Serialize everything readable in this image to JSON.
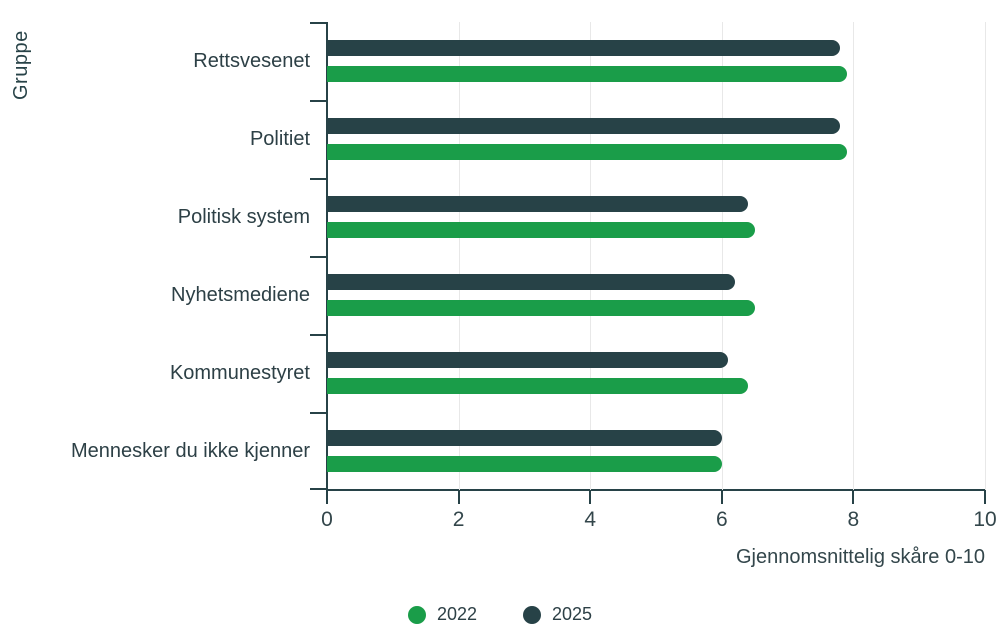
{
  "chart_data": {
    "type": "bar",
    "orientation": "horizontal",
    "title": "",
    "xlabel": "Gjennomsnittelig skåre 0-10",
    "ylabel": "Gruppe",
    "xlim": [
      0,
      10
    ],
    "xticks": [
      0,
      2,
      4,
      6,
      8,
      10
    ],
    "grid": true,
    "legend_position": "bottom",
    "categories": [
      "Rettsvesenet",
      "Politiet",
      "Politisk system",
      "Nyhetsmediene",
      "Kommunestyret",
      "Mennesker du ikke kjenner"
    ],
    "series": [
      {
        "name": "2022",
        "color": "#1a9d49",
        "values": [
          7.9,
          7.9,
          6.5,
          6.5,
          6.4,
          6.0
        ]
      },
      {
        "name": "2025",
        "color": "#274247",
        "values": [
          7.8,
          7.8,
          6.4,
          6.2,
          6.1,
          6.0
        ]
      }
    ],
    "bar_order_top_to_bottom": [
      "2025",
      "2022"
    ]
  },
  "colors": {
    "background": "#ffffff",
    "axis": "#274247",
    "gridline": "#e8e8e8",
    "text": "#2d4046",
    "series_2022": "#1a9d49",
    "series_2025": "#274247"
  },
  "legend": {
    "items": [
      {
        "label": "2022",
        "color": "#1a9d49"
      },
      {
        "label": "2025",
        "color": "#274247"
      }
    ]
  }
}
